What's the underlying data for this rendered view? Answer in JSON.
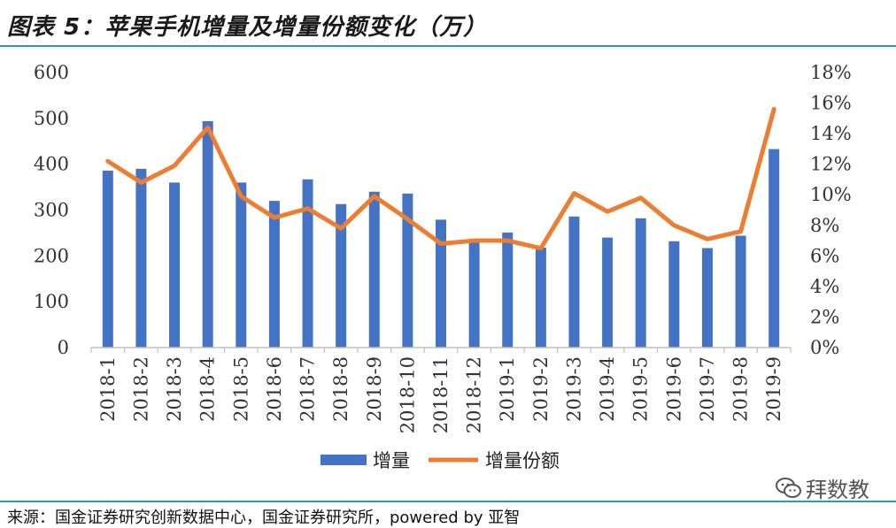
{
  "header": {
    "title": "图表 5：苹果手机增量及增量份额变化（万）"
  },
  "footer": {
    "source": "来源：国金证券研究创新数据中心，国金证券研究所，powered by 亚智",
    "watermark_text": "拜数教",
    "watermark_icon": "wechat-icon"
  },
  "colors": {
    "bar": "#4472c4",
    "line": "#ed7d31",
    "rule": "#2f97c8",
    "axis": "#bfbfbf"
  },
  "chart_data": {
    "type": "bar",
    "title": "",
    "categories": [
      "2018-1",
      "2018-2",
      "2018-3",
      "2018-4",
      "2018-5",
      "2018-6",
      "2018-7",
      "2018-8",
      "2018-9",
      "2018-10",
      "2018-11",
      "2018-12",
      "2019-1",
      "2019-2",
      "2019-3",
      "2019-4",
      "2019-5",
      "2019-6",
      "2019-7",
      "2019-8",
      "2019-9"
    ],
    "series": [
      {
        "name": "增量",
        "type": "bar",
        "axis": "left",
        "values": [
          386,
          390,
          360,
          494,
          360,
          320,
          367,
          313,
          340,
          336,
          279,
          230,
          251,
          218,
          286,
          240,
          282,
          232,
          217,
          244,
          433
        ]
      },
      {
        "name": "增量份额",
        "type": "line",
        "axis": "right",
        "values": [
          0.122,
          0.108,
          0.119,
          0.144,
          0.099,
          0.085,
          0.091,
          0.078,
          0.099,
          0.084,
          0.068,
          0.07,
          0.07,
          0.065,
          0.101,
          0.089,
          0.098,
          0.08,
          0.071,
          0.076,
          0.156
        ]
      }
    ],
    "y_left": {
      "min": 0,
      "max": 600,
      "ticks": [
        0,
        100,
        200,
        300,
        400,
        500,
        600
      ],
      "tick_labels": [
        "0",
        "100",
        "200",
        "300",
        "400",
        "500",
        "600"
      ]
    },
    "y_right": {
      "min": 0,
      "max": 0.18,
      "ticks": [
        0,
        0.02,
        0.04,
        0.06,
        0.08,
        0.1,
        0.12,
        0.14,
        0.16,
        0.18
      ],
      "tick_labels": [
        "0%",
        "2%",
        "4%",
        "6%",
        "8%",
        "10%",
        "12%",
        "14%",
        "16%",
        "18%"
      ]
    },
    "xlabel": "",
    "ylabel": "",
    "grid": false,
    "legend_position": "bottom"
  }
}
